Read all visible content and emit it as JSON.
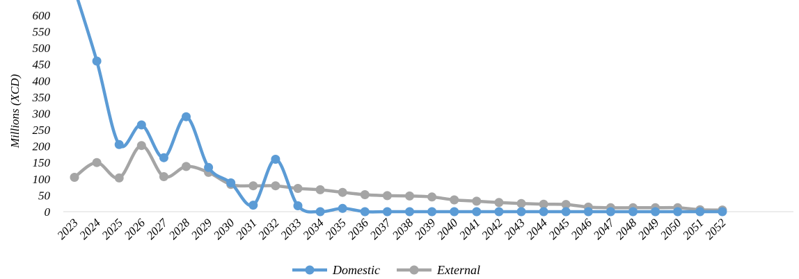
{
  "chart_data": {
    "type": "line",
    "ylabel": "Millions (XCD)",
    "xlabel": "",
    "ylim": [
      0,
      600
    ],
    "yticks": [
      0,
      50,
      100,
      150,
      200,
      250,
      300,
      350,
      400,
      450,
      500,
      550,
      600
    ],
    "x": [
      2023,
      2024,
      2025,
      2026,
      2027,
      2028,
      2029,
      2030,
      2031,
      2032,
      2033,
      2034,
      2035,
      2036,
      2037,
      2038,
      2039,
      2040,
      2041,
      2042,
      2043,
      2044,
      2045,
      2046,
      2047,
      2048,
      2049,
      2050,
      2051,
      2052
    ],
    "grid": false,
    "legend_position": "bottom-center",
    "series": [
      {
        "name": "Domestic",
        "color": "#5B9BD5",
        "values": [
          680,
          460,
          205,
          265,
          165,
          290,
          135,
          88,
          20,
          160,
          18,
          0,
          10,
          0,
          0,
          0,
          0,
          0,
          0,
          0,
          0,
          0,
          0,
          0,
          0,
          0,
          0,
          0,
          0,
          0
        ]
      },
      {
        "name": "External",
        "color": "#A5A5A5",
        "values": [
          105,
          150,
          103,
          202,
          107,
          138,
          120,
          83,
          79,
          79,
          71,
          67,
          59,
          52,
          49,
          48,
          45,
          36,
          32,
          28,
          25,
          23,
          22,
          14,
          12,
          12,
          12,
          12,
          6,
          5
        ]
      }
    ]
  }
}
